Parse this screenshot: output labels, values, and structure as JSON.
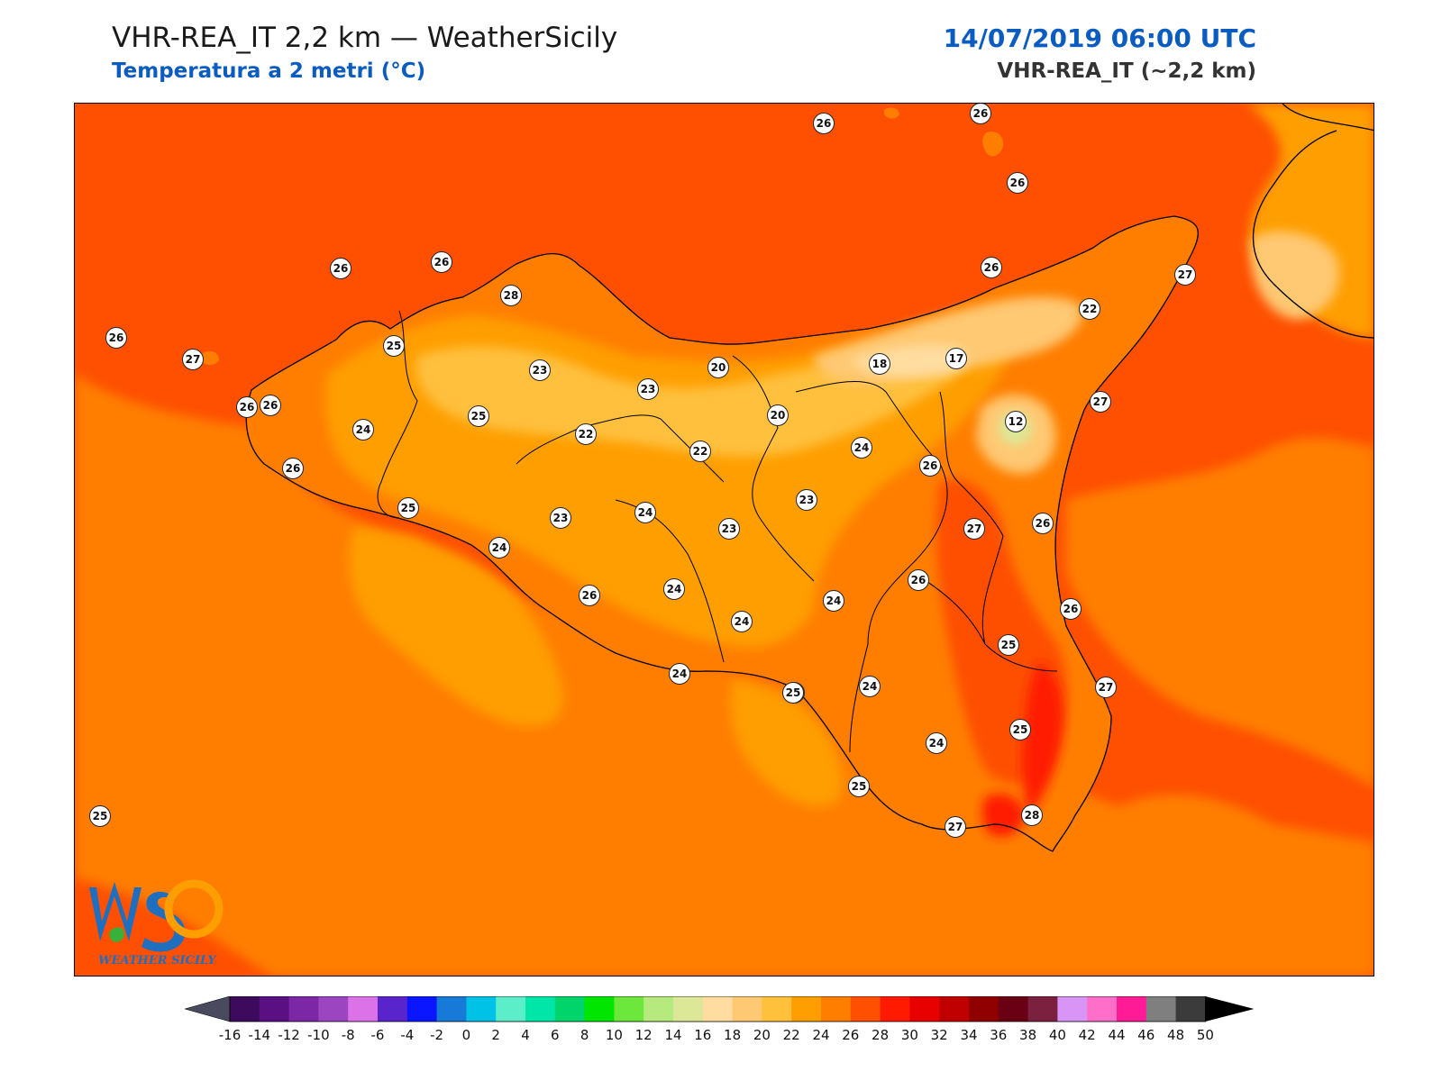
{
  "header": {
    "title": "VHR-REA_IT 2,2 km — WeatherSicily",
    "subtitle": "Temperatura a 2 metri (°C)",
    "datetime": "14/07/2019 06:00 UTC",
    "model": "VHR-REA_IT (~2,2 km)"
  },
  "logo": {
    "letters": "WS",
    "caption": "WEATHER SICILY"
  },
  "colorbar": {
    "ticks": [
      "-16",
      "-14",
      "-12",
      "-10",
      "-8",
      "-6",
      "-4",
      "-2",
      "0",
      "2",
      "4",
      "6",
      "8",
      "10",
      "12",
      "14",
      "16",
      "18",
      "20",
      "22",
      "24",
      "26",
      "28",
      "30",
      "32",
      "34",
      "36",
      "38",
      "40",
      "42",
      "44",
      "46",
      "48",
      "50"
    ],
    "colors": [
      "#3e0a5e",
      "#5a0f82",
      "#7b27a6",
      "#9b45c0",
      "#dc72e8",
      "#5a24cc",
      "#0a16ff",
      "#1779d8",
      "#00c2e6",
      "#5ceec8",
      "#00e6a8",
      "#00d46a",
      "#00e600",
      "#6be83b",
      "#b6ea7e",
      "#dce898",
      "#ffdda0",
      "#ffc872",
      "#ffc03c",
      "#ff9e00",
      "#ff7e00",
      "#fe5000",
      "#ff1a00",
      "#e80000",
      "#c00000",
      "#900000",
      "#6a0014",
      "#7c2040",
      "#d895f5",
      "#ff6ec8",
      "#ff1a96",
      "#7f7f7f",
      "#3b3b3b"
    ],
    "under_color": "#4a4a5e",
    "over_color": "#000000"
  },
  "map_labels": [
    {
      "value": "26"
    },
    {
      "value": "25"
    },
    {
      "value": "26"
    },
    {
      "value": "26"
    },
    {
      "value": "26"
    },
    {
      "value": "28"
    },
    {
      "value": "26"
    },
    {
      "value": "26"
    },
    {
      "value": "27"
    },
    {
      "value": "26"
    },
    {
      "value": "26"
    },
    {
      "value": "27"
    },
    {
      "value": "22"
    },
    {
      "value": "25"
    },
    {
      "value": "23"
    },
    {
      "value": "23"
    },
    {
      "value": "20"
    },
    {
      "value": "18"
    },
    {
      "value": "17"
    },
    {
      "value": "27"
    },
    {
      "value": "26"
    },
    {
      "value": "24"
    },
    {
      "value": "25"
    },
    {
      "value": "22"
    },
    {
      "value": "22"
    },
    {
      "value": "20"
    },
    {
      "value": "12"
    },
    {
      "value": "24"
    },
    {
      "value": "26"
    },
    {
      "value": "26"
    },
    {
      "value": "23"
    },
    {
      "value": "23"
    },
    {
      "value": "24"
    },
    {
      "value": "23"
    },
    {
      "value": "27"
    },
    {
      "value": "26"
    },
    {
      "value": "25"
    },
    {
      "value": "24"
    },
    {
      "value": "26"
    },
    {
      "value": "24"
    },
    {
      "value": "26"
    },
    {
      "value": "24"
    },
    {
      "value": "26"
    },
    {
      "value": "24"
    },
    {
      "value": "25"
    },
    {
      "value": "24"
    },
    {
      "value": "25"
    },
    {
      "value": "24"
    },
    {
      "value": "27"
    },
    {
      "value": "25"
    },
    {
      "value": "24"
    },
    {
      "value": "25"
    },
    {
      "value": "27"
    },
    {
      "value": "28"
    },
    {
      "value": "25"
    }
  ]
}
